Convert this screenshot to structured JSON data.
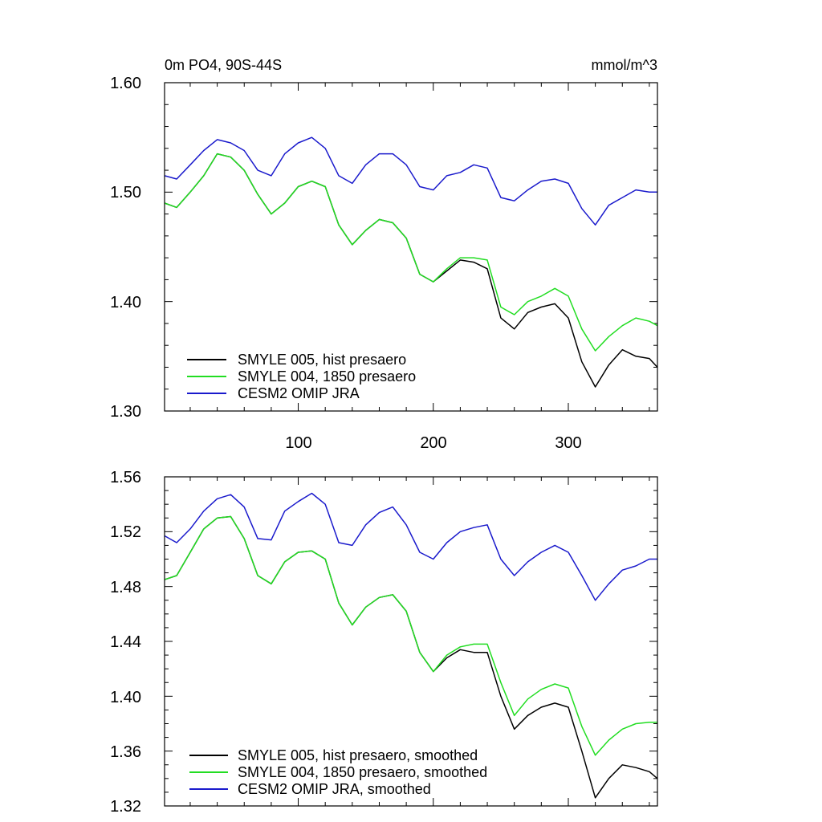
{
  "chart_data": [
    {
      "type": "line",
      "title": "0m PO4, 90S-44S",
      "units": "mmol/m^3",
      "xlim": [
        1,
        366
      ],
      "ylim": [
        1.3,
        1.6
      ],
      "x_ticks": [
        100,
        200,
        300
      ],
      "y_ticks": [
        "1.30",
        "1.40",
        "1.50",
        "1.60"
      ],
      "legend_position": "bottom-left",
      "series": [
        {
          "name": "SMYLE 005, hist presaero",
          "color": "#000000",
          "x": [
            1,
            10,
            20,
            30,
            40,
            50,
            60,
            70,
            80,
            90,
            100,
            110,
            120,
            130,
            140,
            150,
            160,
            170,
            180,
            190,
            200,
            210,
            220,
            230,
            240,
            250,
            260,
            270,
            280,
            290,
            300,
            310,
            320,
            330,
            340,
            350,
            360,
            366
          ],
          "y": [
            1.49,
            1.486,
            1.5,
            1.515,
            1.535,
            1.532,
            1.52,
            1.498,
            1.48,
            1.49,
            1.505,
            1.51,
            1.505,
            1.47,
            1.452,
            1.465,
            1.475,
            1.472,
            1.458,
            1.425,
            1.418,
            1.428,
            1.438,
            1.436,
            1.43,
            1.385,
            1.375,
            1.39,
            1.395,
            1.398,
            1.385,
            1.345,
            1.322,
            1.342,
            1.356,
            1.35,
            1.348,
            1.34
          ]
        },
        {
          "name": "SMYLE 004, 1850 presaero",
          "color": "#22dd22",
          "x": [
            1,
            10,
            20,
            30,
            40,
            50,
            60,
            70,
            80,
            90,
            100,
            110,
            120,
            130,
            140,
            150,
            160,
            170,
            180,
            190,
            200,
            210,
            220,
            230,
            240,
            250,
            260,
            270,
            280,
            290,
            300,
            310,
            320,
            330,
            340,
            350,
            360,
            366
          ],
          "y": [
            1.49,
            1.486,
            1.5,
            1.515,
            1.535,
            1.532,
            1.52,
            1.498,
            1.48,
            1.49,
            1.505,
            1.51,
            1.505,
            1.47,
            1.452,
            1.465,
            1.475,
            1.472,
            1.458,
            1.425,
            1.418,
            1.43,
            1.44,
            1.44,
            1.438,
            1.395,
            1.388,
            1.4,
            1.405,
            1.412,
            1.405,
            1.375,
            1.355,
            1.368,
            1.378,
            1.385,
            1.382,
            1.378
          ]
        },
        {
          "name": "CESM2 OMIP JRA",
          "color": "#1a1acc",
          "x": [
            1,
            10,
            20,
            30,
            40,
            50,
            60,
            70,
            80,
            90,
            100,
            110,
            120,
            130,
            140,
            150,
            160,
            170,
            180,
            190,
            200,
            210,
            220,
            230,
            240,
            250,
            260,
            270,
            280,
            290,
            300,
            310,
            320,
            330,
            340,
            350,
            360,
            366
          ],
          "y": [
            1.515,
            1.512,
            1.525,
            1.538,
            1.548,
            1.545,
            1.538,
            1.52,
            1.515,
            1.535,
            1.545,
            1.55,
            1.54,
            1.515,
            1.508,
            1.525,
            1.535,
            1.535,
            1.525,
            1.505,
            1.502,
            1.515,
            1.518,
            1.525,
            1.522,
            1.495,
            1.492,
            1.502,
            1.51,
            1.512,
            1.508,
            1.485,
            1.47,
            1.488,
            1.495,
            1.502,
            1.5,
            1.5
          ]
        }
      ]
    },
    {
      "type": "line",
      "xlim": [
        1,
        366
      ],
      "ylim": [
        1.32,
        1.56
      ],
      "y_ticks": [
        "1.32",
        "1.36",
        "1.40",
        "1.44",
        "1.48",
        "1.52",
        "1.56"
      ],
      "legend_position": "bottom-left",
      "series": [
        {
          "name": "SMYLE 005, hist presaero, smoothed",
          "color": "#000000",
          "x": [
            1,
            10,
            20,
            30,
            40,
            50,
            60,
            70,
            80,
            90,
            100,
            110,
            120,
            130,
            140,
            150,
            160,
            170,
            180,
            190,
            200,
            210,
            220,
            230,
            240,
            250,
            260,
            270,
            280,
            290,
            300,
            310,
            320,
            330,
            340,
            350,
            360,
            366
          ],
          "y": [
            1.485,
            1.488,
            1.505,
            1.522,
            1.53,
            1.531,
            1.515,
            1.488,
            1.482,
            1.498,
            1.505,
            1.506,
            1.5,
            1.468,
            1.452,
            1.465,
            1.472,
            1.474,
            1.462,
            1.432,
            1.418,
            1.428,
            1.434,
            1.432,
            1.432,
            1.4,
            1.376,
            1.386,
            1.392,
            1.395,
            1.392,
            1.36,
            1.326,
            1.34,
            1.35,
            1.348,
            1.345,
            1.34
          ]
        },
        {
          "name": "SMYLE 004, 1850 presaero, smoothed",
          "color": "#22dd22",
          "x": [
            1,
            10,
            20,
            30,
            40,
            50,
            60,
            70,
            80,
            90,
            100,
            110,
            120,
            130,
            140,
            150,
            160,
            170,
            180,
            190,
            200,
            210,
            220,
            230,
            240,
            250,
            260,
            270,
            280,
            290,
            300,
            310,
            320,
            330,
            340,
            350,
            360,
            366
          ],
          "y": [
            1.485,
            1.488,
            1.505,
            1.522,
            1.53,
            1.531,
            1.515,
            1.488,
            1.482,
            1.498,
            1.505,
            1.506,
            1.5,
            1.468,
            1.452,
            1.465,
            1.472,
            1.474,
            1.462,
            1.432,
            1.418,
            1.43,
            1.436,
            1.438,
            1.438,
            1.41,
            1.386,
            1.398,
            1.405,
            1.409,
            1.406,
            1.378,
            1.357,
            1.368,
            1.376,
            1.38,
            1.381,
            1.381
          ]
        },
        {
          "name": "CESM2 OMIP JRA, smoothed",
          "color": "#1a1acc",
          "x": [
            1,
            10,
            20,
            30,
            40,
            50,
            60,
            70,
            80,
            90,
            100,
            110,
            120,
            130,
            140,
            150,
            160,
            170,
            180,
            190,
            200,
            210,
            220,
            230,
            240,
            250,
            260,
            270,
            280,
            290,
            300,
            310,
            320,
            330,
            340,
            350,
            360,
            366
          ],
          "y": [
            1.517,
            1.512,
            1.522,
            1.535,
            1.544,
            1.547,
            1.538,
            1.515,
            1.514,
            1.535,
            1.542,
            1.548,
            1.54,
            1.512,
            1.51,
            1.525,
            1.534,
            1.538,
            1.525,
            1.505,
            1.5,
            1.512,
            1.52,
            1.523,
            1.525,
            1.5,
            1.488,
            1.498,
            1.505,
            1.51,
            1.505,
            1.488,
            1.47,
            1.482,
            1.492,
            1.495,
            1.5,
            1.5
          ]
        }
      ]
    }
  ]
}
